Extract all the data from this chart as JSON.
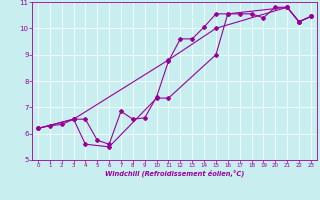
{
  "xlabel": "Windchill (Refroidissement éolien,°C)",
  "bg_color": "#c8eef0",
  "line_color": "#990099",
  "xlim": [
    0,
    23
  ],
  "ylim": [
    5,
    11
  ],
  "xticks": [
    0,
    1,
    2,
    3,
    4,
    5,
    6,
    7,
    8,
    9,
    10,
    11,
    12,
    13,
    14,
    15,
    16,
    17,
    18,
    19,
    20,
    21,
    22,
    23
  ],
  "yticks": [
    5,
    6,
    7,
    8,
    9,
    10,
    11
  ],
  "series": [
    {
      "x": [
        0,
        1,
        2,
        3,
        4,
        5,
        6,
        7,
        8,
        9,
        10,
        11,
        12,
        13,
        14,
        15,
        16,
        17,
        18,
        19,
        20,
        21,
        22,
        23
      ],
      "y": [
        6.2,
        6.3,
        6.35,
        6.55,
        6.55,
        5.75,
        5.6,
        6.85,
        6.55,
        6.6,
        7.4,
        8.75,
        9.6,
        9.6,
        10.05,
        10.55,
        10.55,
        10.55,
        10.55,
        10.4,
        10.8,
        10.8,
        10.25,
        10.45
      ]
    },
    {
      "x": [
        0,
        3,
        11,
        15,
        21,
        22,
        23
      ],
      "y": [
        6.2,
        6.55,
        8.8,
        10.0,
        10.8,
        10.25,
        10.45
      ]
    },
    {
      "x": [
        0,
        3,
        4,
        6,
        10,
        11,
        15,
        16,
        21,
        22,
        23
      ],
      "y": [
        6.2,
        6.55,
        5.6,
        5.5,
        7.35,
        7.35,
        9.0,
        10.55,
        10.8,
        10.25,
        10.45
      ]
    }
  ]
}
